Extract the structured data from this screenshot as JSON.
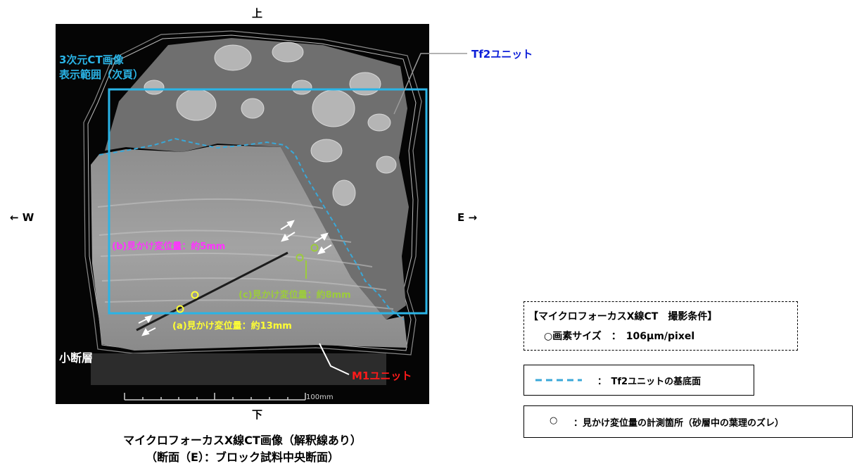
{
  "directions": {
    "top": "上",
    "bottom": "下",
    "west": "← W",
    "east": "E →"
  },
  "ct_image": {
    "ct_range_label_1": "3次元CT画像",
    "ct_range_label_2": "表示範囲（次頁）",
    "label_b": "(b)見かけ変位量：約5mm",
    "label_c": "(c)見かけ変位量：約8mm",
    "label_a": "(a)見かけ変位量：約13mm",
    "small_fault": "小断層",
    "scale_label": "100mm"
  },
  "callouts": {
    "tf2_unit": "Tf2ユニット",
    "m1_unit": "M1ユニット"
  },
  "caption": {
    "line1": "マイクロフォーカスX線CT画像（解釈線あり）",
    "line2": "（断面（E）：ブロック試料中央断面）"
  },
  "conditions": {
    "title": "【マイクロフォーカスX線CT　撮影条件】",
    "pixel_size": "○画素サイズ　：　106μm/pixel"
  },
  "legend": {
    "base_surface": "：　Tf2ユニットの基底面",
    "measure_points": "：見かけ変位量の計測箇所（砂層中の葉理のズレ）",
    "measure_symbol": "○"
  },
  "colors": {
    "ct_range_blue": "#2ab4e6",
    "tf2_label": "#0d1fd8",
    "m1_label": "#ff1a1a",
    "label_b": "#ff33ff",
    "label_c": "#9ccc3c",
    "label_a": "#ffff33",
    "base_line": "#3aa8d8"
  }
}
